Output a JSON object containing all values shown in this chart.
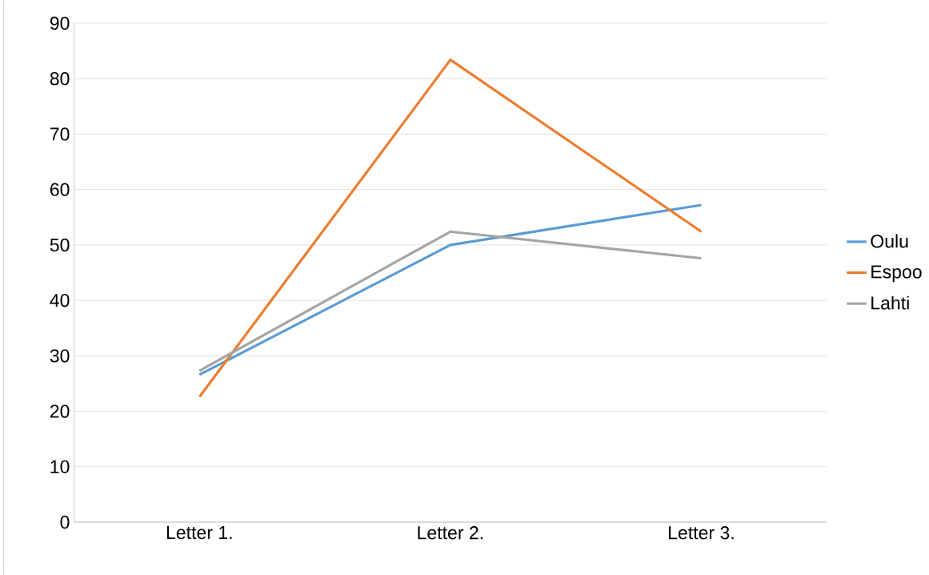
{
  "chart_data": {
    "type": "line",
    "categories": [
      "Letter 1.",
      "Letter 2.",
      "Letter 3."
    ],
    "series": [
      {
        "name": "Oulu",
        "color": "#5b9bd5",
        "values": [
          26.6,
          50.0,
          57.2
        ]
      },
      {
        "name": "Espoo",
        "color": "#ed7d31",
        "values": [
          22.6,
          83.4,
          52.4
        ]
      },
      {
        "name": "Lahti",
        "color": "#a5a5a5",
        "values": [
          27.3,
          52.4,
          47.6
        ]
      }
    ],
    "ylim": [
      0,
      90
    ],
    "yticks": [
      0,
      10,
      20,
      30,
      40,
      50,
      60,
      70,
      80,
      90
    ],
    "grid": "y",
    "legend": "right",
    "marker": "none",
    "line_style": "solid"
  }
}
